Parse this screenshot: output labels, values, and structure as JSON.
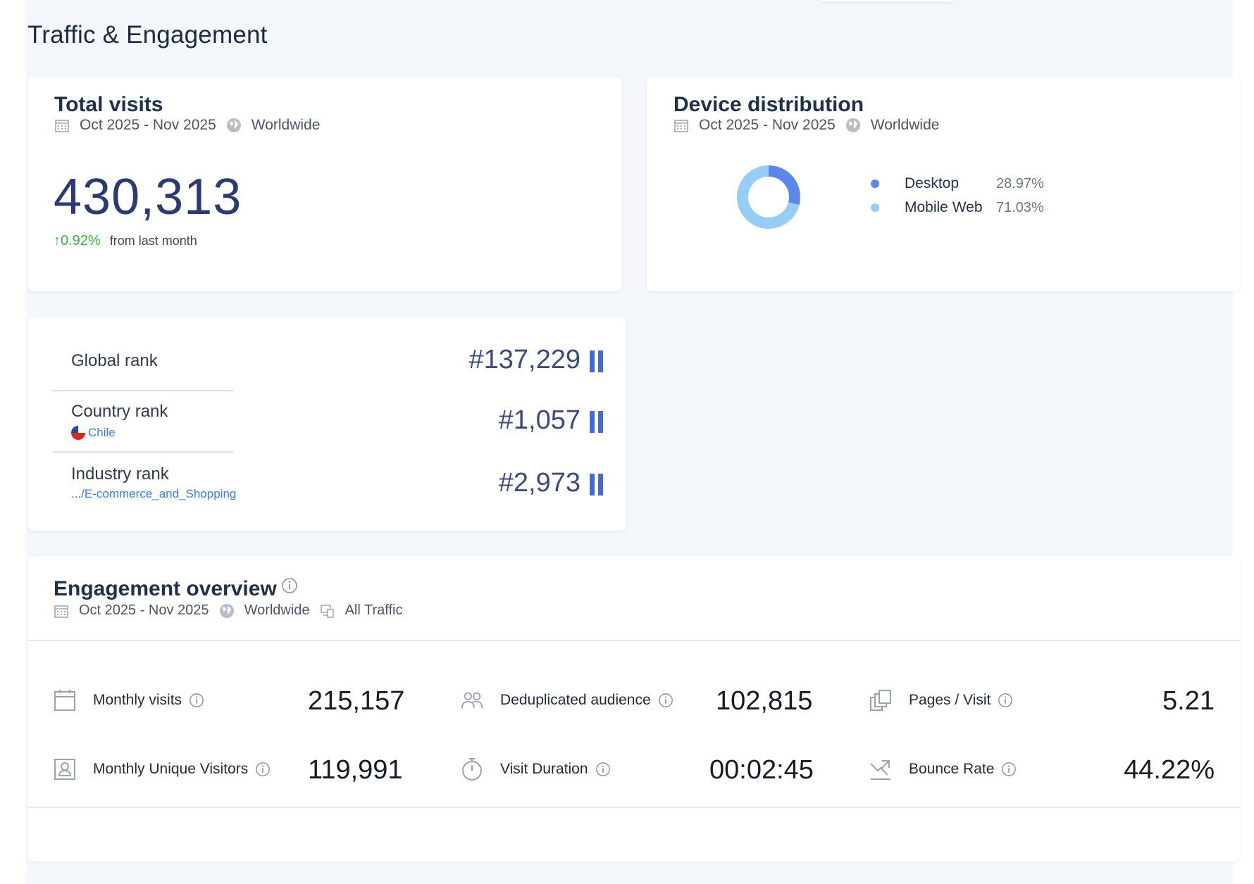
{
  "page": {
    "title": "Traffic & Engagement"
  },
  "total_visits": {
    "title": "Total visits",
    "date_range": "Oct 2025 - Nov 2025",
    "region": "Worldwide",
    "value": "430,313",
    "change": "0.92%",
    "change_label": "from last month",
    "change_color": "#3fae3b"
  },
  "device_distribution": {
    "title": "Device distribution",
    "date_range": "Oct 2025 - Nov 2025",
    "region": "Worldwide",
    "segments": [
      {
        "name": "Desktop",
        "value": "28.97%",
        "fraction": 0.2897,
        "color": "#5b86ea"
      },
      {
        "name": "Mobile Web",
        "value": "71.03%",
        "fraction": 0.7103,
        "color": "#97ccf7"
      }
    ]
  },
  "ranks": {
    "global": {
      "label": "Global rank",
      "value": "#137,229"
    },
    "country": {
      "label": "Country rank",
      "sub": "Chile",
      "value": "#1,057"
    },
    "industry": {
      "label": "Industry rank",
      "sub": ".../E-commerce_and_Shopping",
      "value": "#2,973"
    },
    "bar_color": "#3b6ce0"
  },
  "engagement": {
    "title": "Engagement overview",
    "date_range": "Oct 2025 - Nov 2025",
    "region": "Worldwide",
    "traffic": "All Traffic",
    "metrics": [
      {
        "label": "Monthly visits",
        "value": "215,157",
        "icon": "calendar-icon"
      },
      {
        "label": "Deduplicated audience",
        "value": "102,815",
        "icon": "people-icon"
      },
      {
        "label": "Pages / Visit",
        "value": "5.21",
        "icon": "pages-icon"
      },
      {
        "label": "Monthly Unique Visitors",
        "value": "119,991",
        "icon": "badge-icon"
      },
      {
        "label": "Visit Duration",
        "value": "00:02:45",
        "icon": "stopwatch-icon"
      },
      {
        "label": "Bounce Rate",
        "value": "44.22%",
        "icon": "bounce-icon"
      }
    ]
  }
}
